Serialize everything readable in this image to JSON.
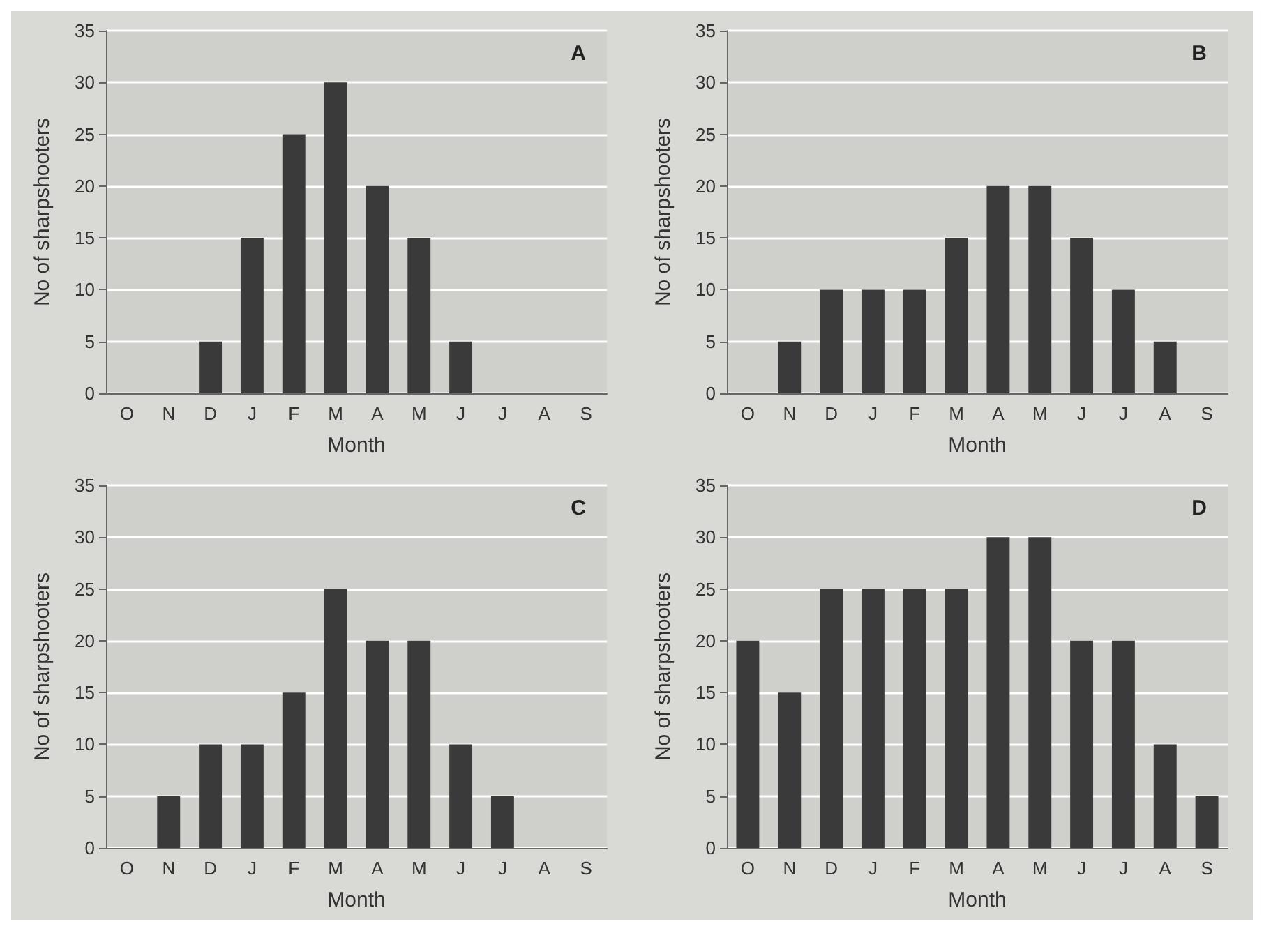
{
  "chart_data": [
    {
      "type": "bar",
      "title": "A",
      "xlabel": "Month",
      "ylabel": "No of sharpshooters",
      "categories": [
        "O",
        "N",
        "D",
        "J",
        "F",
        "M",
        "A",
        "M",
        "J",
        "J",
        "A",
        "S"
      ],
      "values": [
        0,
        0,
        5,
        15,
        25,
        30,
        20,
        15,
        5,
        0,
        0,
        0
      ],
      "color": "#3a3a3a",
      "ylim": [
        0,
        35
      ],
      "yticks": [
        0,
        5,
        10,
        15,
        20,
        25,
        30,
        35
      ],
      "grid": "y"
    },
    {
      "type": "bar",
      "title": "B",
      "xlabel": "Month",
      "ylabel": "No of sharpshooters",
      "categories": [
        "O",
        "N",
        "D",
        "J",
        "F",
        "M",
        "A",
        "M",
        "J",
        "J",
        "A",
        "S"
      ],
      "values": [
        0,
        5,
        10,
        10,
        10,
        15,
        20,
        20,
        15,
        10,
        5,
        0
      ],
      "color": "#3a3a3a",
      "ylim": [
        0,
        35
      ],
      "yticks": [
        0,
        5,
        10,
        15,
        20,
        25,
        30,
        35
      ],
      "grid": "y"
    },
    {
      "type": "bar",
      "title": "C",
      "xlabel": "Month",
      "ylabel": "No of sharpshooters",
      "categories": [
        "O",
        "N",
        "D",
        "J",
        "F",
        "M",
        "A",
        "M",
        "J",
        "J",
        "A",
        "S"
      ],
      "values": [
        0,
        5,
        10,
        10,
        15,
        25,
        20,
        20,
        10,
        5,
        0,
        0
      ],
      "color": "#3a3a3a",
      "ylim": [
        0,
        35
      ],
      "yticks": [
        0,
        5,
        10,
        15,
        20,
        25,
        30,
        35
      ],
      "grid": "y"
    },
    {
      "type": "bar",
      "title": "D",
      "xlabel": "Month",
      "ylabel": "No of sharpshooters",
      "categories": [
        "O",
        "N",
        "D",
        "J",
        "F",
        "M",
        "A",
        "M",
        "J",
        "J",
        "A",
        "S"
      ],
      "values": [
        20,
        15,
        25,
        25,
        25,
        25,
        30,
        30,
        20,
        20,
        10,
        5
      ],
      "color": "#3a3a3a",
      "ylim": [
        0,
        35
      ],
      "yticks": [
        0,
        5,
        10,
        15,
        20,
        25,
        30,
        35
      ],
      "grid": "y"
    }
  ]
}
